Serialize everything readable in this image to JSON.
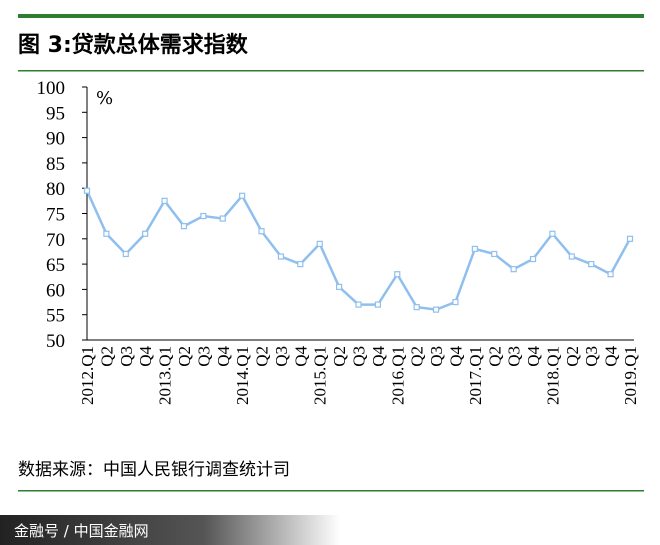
{
  "chart_data": {
    "type": "line",
    "title": "图 3:贷款总体需求指数",
    "unit": "%",
    "source": "数据来源：中国人民银行调查统计司",
    "watermark": "金融号 / 中国金融网",
    "categories": [
      "2012.Q1",
      "Q2",
      "Q3",
      "Q4",
      "2013.Q1",
      "Q2",
      "Q3",
      "Q4",
      "2014.Q1",
      "Q2",
      "Q3",
      "Q4",
      "2015.Q1",
      "Q2",
      "Q3",
      "Q4",
      "2016.Q1",
      "Q2",
      "Q3",
      "Q4",
      "2017.Q1",
      "Q2",
      "Q3",
      "Q4",
      "2018.Q1",
      "Q2",
      "Q3",
      "Q4",
      "2019.Q1"
    ],
    "series": [
      {
        "color": "#8fbfef",
        "values": [
          79.5,
          71,
          67,
          71,
          77.5,
          72.5,
          74.5,
          74,
          78.5,
          71.5,
          66.5,
          65,
          69,
          60.5,
          57,
          57,
          63,
          56.5,
          56,
          57.5,
          68,
          67,
          64,
          66,
          71,
          66.5,
          65,
          63,
          70
        ]
      }
    ],
    "ylim": [
      50,
      100
    ],
    "yticks": [
      50,
      55,
      60,
      65,
      70,
      75,
      80,
      85,
      90,
      95,
      100
    ]
  }
}
